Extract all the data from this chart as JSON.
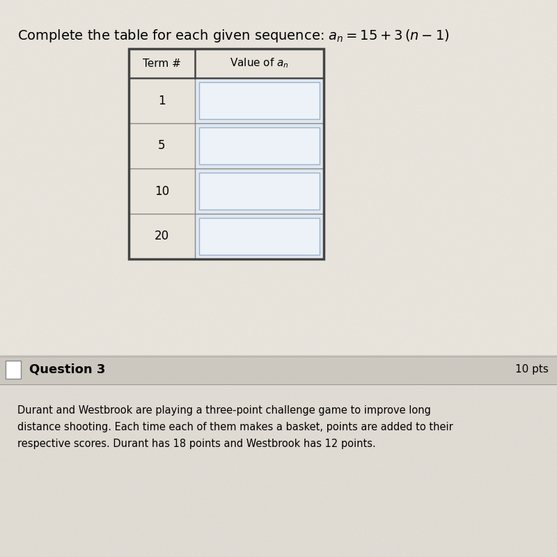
{
  "title_text": "Complete the table for each given sequence: $a_n = 15 + 3\\,(n - 1)$",
  "col_header1": "Term #",
  "col_header2": "Value of $a_n$",
  "term_numbers": [
    "1",
    "5",
    "10",
    "20"
  ],
  "top_bg_color": "#e8e4dc",
  "mid_bg_color": "#dedad2",
  "bottom_bg_color": "#ccc8c0",
  "table_outer_color": "#444444",
  "table_inner_color": "#888888",
  "cell1_bg": "#e8e4dc",
  "cell2_bg": "#e0e8f0",
  "inner_box_bg": "#edf2f8",
  "inner_box_border": "#9ab0cc",
  "header_bg": "#e8e4dc",
  "question3_text": "Question 3",
  "question3_pts": "10 pts",
  "question3_body1": "Durant and Westbrook are playing a three-point challenge game to improve long",
  "question3_body2": "distance shooting. Each time each of them makes a basket, points are added to their",
  "question3_body3": "respective scores. Durant has 18 points and Westbrook has 12 points.",
  "fig_width": 8.0,
  "fig_height": 8.0,
  "dpi": 100
}
